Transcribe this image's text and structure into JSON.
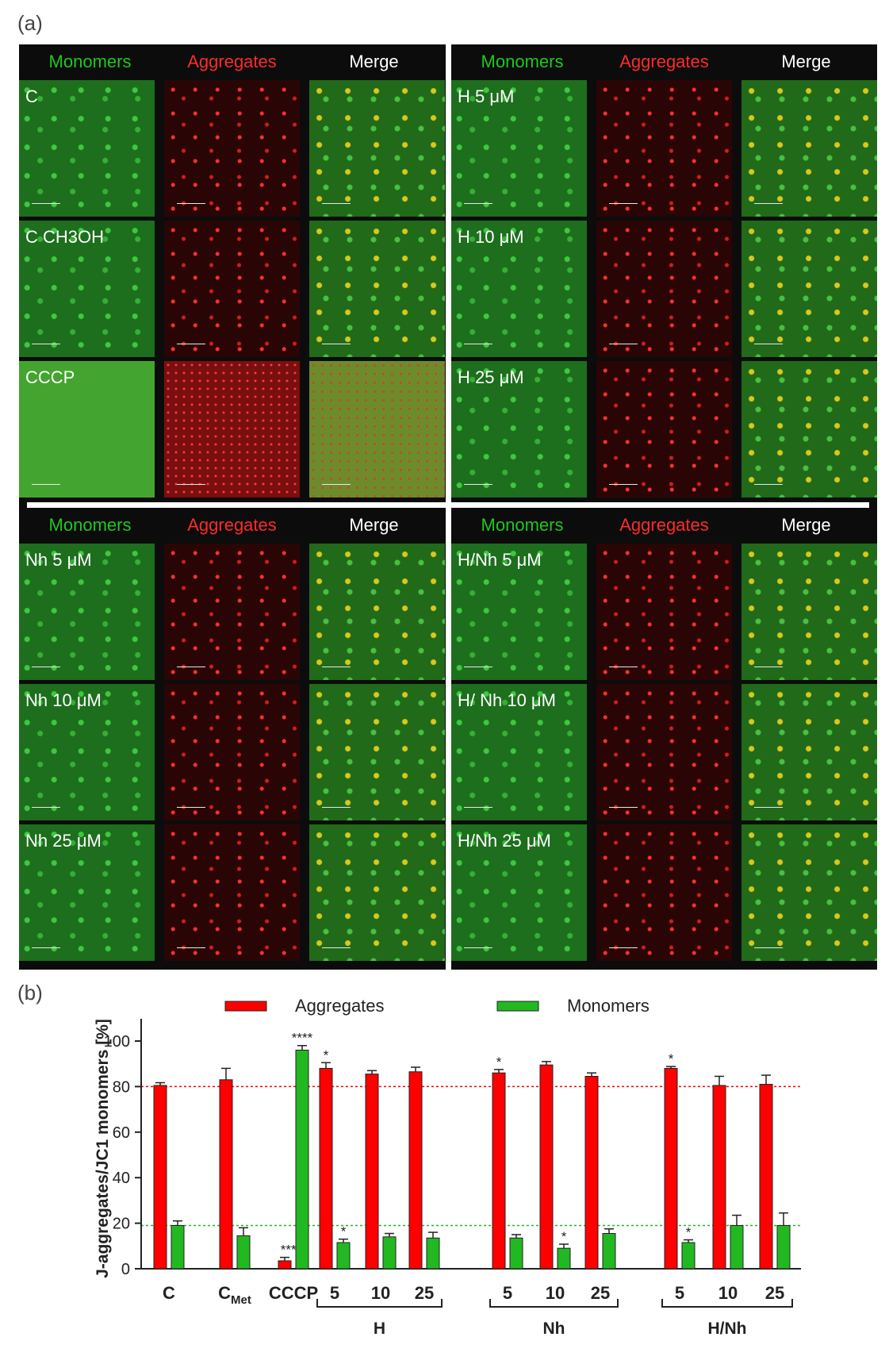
{
  "panel_a_label": "(a)",
  "panel_b_label": "(b)",
  "microscopy": {
    "column_headers": [
      "Monomers",
      "Aggregates",
      "Merge"
    ],
    "quadrants": [
      {
        "rows": [
          "C",
          "C CH3OH",
          "CCCP"
        ]
      },
      {
        "rows": [
          "H 5 μM",
          "H 10 μM",
          "H 25 μM"
        ]
      },
      {
        "rows": [
          "Nh 5 μM",
          "Nh 10 μM",
          "Nh 25 μM"
        ]
      },
      {
        "rows": [
          "H/Nh 5 μM",
          "H/ Nh 10 μM",
          "H/Nh 25 μM"
        ]
      }
    ],
    "colors": {
      "monomers": "#1ec81e",
      "aggregates": "#ff2a2a",
      "merge": "#ffffff"
    }
  },
  "chart_data": {
    "type": "bar",
    "ylabel": "J-aggregates/JC1 monomers [%]",
    "ylim": [
      0,
      100
    ],
    "yticks": [
      0,
      20,
      40,
      60,
      80,
      100
    ],
    "legend": {
      "placement": "top",
      "entries": [
        "Aggregates",
        "Monomers"
      ]
    },
    "colors": {
      "Aggregates": "#ff0000",
      "Monomers": "#22b822"
    },
    "categories": [
      "C",
      "C_Met",
      "CCCP",
      "5",
      "10",
      "25",
      "5",
      "10",
      "25",
      "5",
      "10",
      "25"
    ],
    "category_display": [
      {
        "main": "C",
        "sub": ""
      },
      {
        "main": "C",
        "sub": "Met"
      },
      {
        "main": "CCCP",
        "sub": ""
      },
      {
        "main": "5",
        "sub": ""
      },
      {
        "main": "10",
        "sub": ""
      },
      {
        "main": "25",
        "sub": ""
      },
      {
        "main": "5",
        "sub": ""
      },
      {
        "main": "10",
        "sub": ""
      },
      {
        "main": "25",
        "sub": ""
      },
      {
        "main": "5",
        "sub": ""
      },
      {
        "main": "10",
        "sub": ""
      },
      {
        "main": "25",
        "sub": ""
      }
    ],
    "groups": [
      {
        "label": "H",
        "start": 3,
        "end": 5
      },
      {
        "label": "Nh",
        "start": 6,
        "end": 8
      },
      {
        "label": "H/Nh",
        "start": 9,
        "end": 11
      }
    ],
    "series": [
      {
        "name": "Aggregates",
        "values": [
          80.5,
          83,
          3.5,
          88,
          85.5,
          86.5,
          86,
          89.5,
          84.5,
          88,
          80.5,
          81
        ],
        "errors": [
          1.2,
          5,
          1.5,
          2.5,
          1.5,
          2,
          1.5,
          1.5,
          1.5,
          0.8,
          4,
          4
        ],
        "significance": [
          "",
          "",
          "****",
          "*",
          "",
          "",
          "*",
          "",
          "",
          "*",
          "",
          ""
        ]
      },
      {
        "name": "Monomers",
        "values": [
          19,
          14.5,
          96,
          11.5,
          14,
          13.5,
          13.5,
          9,
          15.5,
          11.5,
          19,
          19
        ],
        "errors": [
          2,
          3.5,
          2,
          1.5,
          1.5,
          2.5,
          1.5,
          1.8,
          2,
          1.2,
          4.5,
          5.5
        ],
        "significance": [
          "",
          "",
          "****",
          "*",
          "",
          "",
          "",
          "*",
          "",
          "*",
          "",
          ""
        ]
      }
    ],
    "reference_lines": [
      {
        "y": 80,
        "color": "#ff0000",
        "style": "dotted"
      },
      {
        "y": 19,
        "color": "#22b822",
        "style": "dotted"
      }
    ]
  }
}
